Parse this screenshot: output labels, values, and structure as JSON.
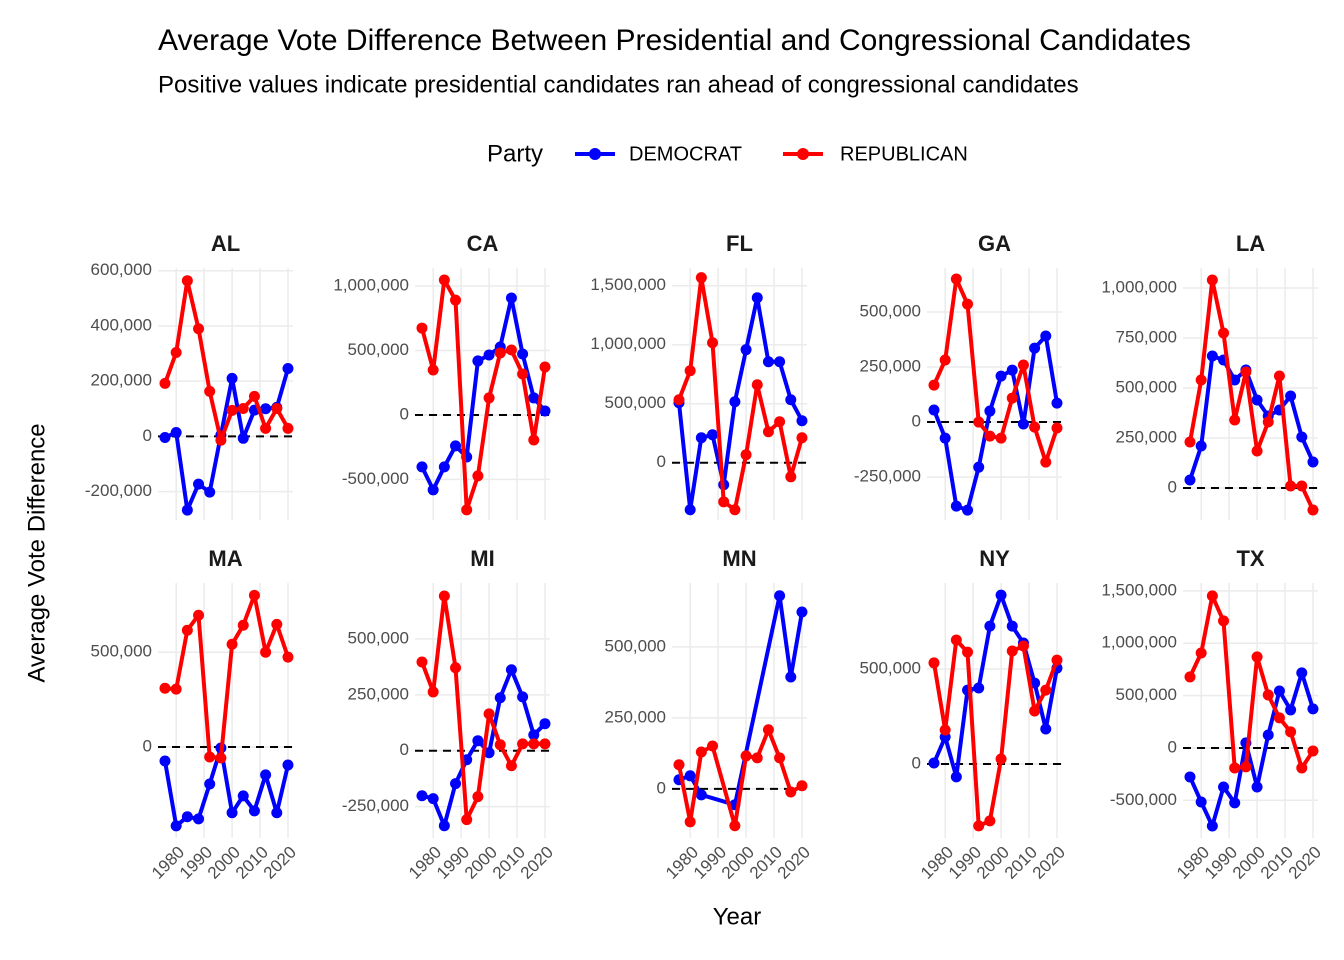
{
  "figure": {
    "title": "Average Vote Difference Between Presidential and Congressional Candidates",
    "subtitle": "Positive values indicate presidential candidates ran ahead of congressional candidates",
    "legend_title": "Party",
    "x_label": "Year",
    "y_label": "Average Vote Difference",
    "hline": 0
  },
  "chart_data": [
    {
      "type": "line",
      "title": "AL",
      "xlim": [
        1973.5,
        2021.8
      ],
      "xticks": [
        1980,
        1990,
        2000,
        2010,
        2020
      ],
      "ylim": [
        -303000,
        610000
      ],
      "yticks": [
        {
          "value": -200000,
          "label": "-200,000"
        },
        0,
        {
          "value": 200000,
          "label": "200,000"
        },
        {
          "value": 400000,
          "label": "400,000"
        },
        {
          "value": 600000,
          "label": "600,000"
        }
      ],
      "series": [
        {
          "name": "DEMOCRAT",
          "color": "#0000ff",
          "x": [
            1976,
            1980,
            1984,
            1988,
            1992,
            1996,
            2000,
            2004,
            2008,
            2012,
            2016,
            2020
          ],
          "values": [
            -4000,
            14000,
            -267000,
            -173000,
            -202000,
            5000,
            210000,
            -7000,
            95000,
            100000,
            105000,
            246000
          ]
        },
        {
          "name": "REPUBLICAN",
          "color": "#ff0000",
          "x": [
            1976,
            1980,
            1984,
            1988,
            1992,
            1996,
            2000,
            2004,
            2008,
            2012,
            2016,
            2020
          ],
          "values": [
            192000,
            304000,
            564000,
            390000,
            163000,
            -14000,
            94000,
            101000,
            145000,
            29000,
            101000,
            29000
          ]
        }
      ]
    },
    {
      "type": "line",
      "title": "CA",
      "xlim": [
        1973.5,
        2021.8
      ],
      "xticks": [
        1980,
        1990,
        2000,
        2010,
        2020
      ],
      "ylim": [
        -815000,
        1140000
      ],
      "yticks": [
        {
          "value": -500000,
          "label": "-500,000"
        },
        0,
        {
          "value": 500000,
          "label": "500,000"
        },
        {
          "value": 1000000,
          "label": "1,000,000"
        }
      ],
      "series": [
        {
          "name": "DEMOCRAT",
          "color": "#0000ff",
          "x": [
            1976,
            1980,
            1984,
            1988,
            1992,
            1996,
            2000,
            2004,
            2008,
            2012,
            2016,
            2020
          ],
          "values": [
            -403000,
            -581000,
            -403000,
            -240000,
            -326000,
            419000,
            465000,
            527000,
            907000,
            473000,
            132000,
            31000
          ]
        },
        {
          "name": "REPUBLICAN",
          "color": "#ff0000",
          "x": [
            1976,
            1980,
            1984,
            1988,
            1992,
            1996,
            2000,
            2004,
            2008,
            2012,
            2016,
            2020
          ],
          "values": [
            674000,
            349000,
            1047000,
            891000,
            -736000,
            -473000,
            132000,
            481000,
            504000,
            318000,
            -194000,
            372000
          ]
        }
      ]
    },
    {
      "type": "line",
      "title": "FL",
      "xlim": [
        1973.5,
        2021.8
      ],
      "xticks": [
        1980,
        1990,
        2000,
        2010,
        2020
      ],
      "ylim": [
        -485000,
        1650000
      ],
      "yticks": [
        0,
        {
          "value": 500000,
          "label": "500,000"
        },
        {
          "value": 1000000,
          "label": "1,000,000"
        },
        {
          "value": 1500000,
          "label": "1,500,000"
        }
      ],
      "series": [
        {
          "name": "DEMOCRAT",
          "color": "#0000ff",
          "x": [
            1976,
            1980,
            1984,
            1988,
            1992,
            1996,
            2000,
            2004,
            2008,
            2012,
            2016,
            2020
          ],
          "values": [
            508000,
            -398000,
            212000,
            237000,
            -186000,
            517000,
            958000,
            1398000,
            856000,
            856000,
            534000,
            356000
          ]
        },
        {
          "name": "REPUBLICAN",
          "color": "#ff0000",
          "x": [
            1976,
            1980,
            1984,
            1988,
            1992,
            1996,
            2000,
            2004,
            2008,
            2012,
            2016,
            2020
          ],
          "values": [
            534000,
            780000,
            1568000,
            1017000,
            -331000,
            -398000,
            68000,
            661000,
            263000,
            347000,
            -119000,
            212000
          ]
        }
      ]
    },
    {
      "type": "line",
      "title": "GA",
      "xlim": [
        1973.5,
        2021.8
      ],
      "xticks": [
        1980,
        1990,
        2000,
        2010,
        2020
      ],
      "ylim": [
        -445000,
        700000
      ],
      "yticks": [
        {
          "value": -250000,
          "label": "-250,000"
        },
        0,
        {
          "value": 250000,
          "label": "250,000"
        },
        {
          "value": 500000,
          "label": "500,000"
        }
      ],
      "series": [
        {
          "name": "DEMOCRAT",
          "color": "#0000ff",
          "x": [
            1976,
            1980,
            1984,
            1988,
            1992,
            1996,
            2000,
            2004,
            2008,
            2012,
            2016,
            2020
          ],
          "values": [
            55000,
            -73000,
            -382000,
            -400000,
            -205000,
            50000,
            209000,
            236000,
            -9000,
            336000,
            391000,
            86000
          ]
        },
        {
          "name": "REPUBLICAN",
          "color": "#ff0000",
          "x": [
            1976,
            1980,
            1984,
            1988,
            1992,
            1996,
            2000,
            2004,
            2008,
            2012,
            2016,
            2020
          ],
          "values": [
            168000,
            282000,
            650000,
            536000,
            0,
            -64000,
            -73000,
            109000,
            259000,
            -23000,
            -182000,
            -27000
          ]
        }
      ]
    },
    {
      "type": "line",
      "title": "LA",
      "xlim": [
        1973.5,
        2021.8
      ],
      "xticks": [
        1980,
        1990,
        2000,
        2010,
        2020
      ],
      "ylim": [
        -160000,
        1100000
      ],
      "yticks": [
        0,
        {
          "value": 250000,
          "label": "250,000"
        },
        {
          "value": 500000,
          "label": "500,000"
        },
        {
          "value": 750000,
          "label": "750,000"
        },
        {
          "value": 1000000,
          "label": "1,000,000"
        }
      ],
      "series": [
        {
          "name": "DEMOCRAT",
          "color": "#0000ff",
          "x": [
            1976,
            1980,
            1984,
            1988,
            1992,
            1996,
            2000,
            2004,
            2008,
            2012,
            2016,
            2020
          ],
          "values": [
            40000,
            210000,
            660000,
            640000,
            540000,
            590000,
            440000,
            360000,
            390000,
            460000,
            255000,
            130000
          ]
        },
        {
          "name": "REPUBLICAN",
          "color": "#ff0000",
          "x": [
            1976,
            1980,
            1984,
            1988,
            1992,
            1996,
            2000,
            2004,
            2008,
            2012,
            2016,
            2020
          ],
          "values": [
            230000,
            540000,
            1040000,
            775000,
            340000,
            580000,
            185000,
            330000,
            560000,
            10000,
            10000,
            -110000
          ]
        }
      ]
    },
    {
      "type": "line",
      "title": "MA",
      "xlim": [
        1973.5,
        2021.8
      ],
      "xticks": [
        1980,
        1990,
        2000,
        2010,
        2020
      ],
      "ylim": [
        -480000,
        865000
      ],
      "yticks": [
        0,
        {
          "value": 500000,
          "label": "500,000"
        }
      ],
      "series": [
        {
          "name": "DEMOCRAT",
          "color": "#0000ff",
          "x": [
            1976,
            1980,
            1984,
            1988,
            1992,
            1996,
            2000,
            2004,
            2008,
            2012,
            2016,
            2020
          ],
          "values": [
            -74000,
            -416000,
            -368000,
            -379000,
            -195000,
            -5000,
            -347000,
            -258000,
            -337000,
            -147000,
            -347000,
            -95000
          ]
        },
        {
          "name": "REPUBLICAN",
          "color": "#ff0000",
          "x": [
            1976,
            1980,
            1984,
            1988,
            1992,
            1996,
            2000,
            2004,
            2008,
            2012,
            2016,
            2020
          ],
          "values": [
            310000,
            305000,
            616000,
            695000,
            -53000,
            -58000,
            542000,
            642000,
            800000,
            500000,
            647000,
            474000
          ]
        }
      ]
    },
    {
      "type": "line",
      "title": "MI",
      "xlim": [
        1973.5,
        2021.8
      ],
      "xticks": [
        1980,
        1990,
        2000,
        2010,
        2020
      ],
      "ylim": [
        -390000,
        750000
      ],
      "yticks": [
        {
          "value": -250000,
          "label": "-250,000"
        },
        0,
        {
          "value": 250000,
          "label": "250,000"
        },
        {
          "value": 500000,
          "label": "500,000"
        }
      ],
      "series": [
        {
          "name": "DEMOCRAT",
          "color": "#0000ff",
          "x": [
            1976,
            1980,
            1984,
            1988,
            1992,
            1996,
            2000,
            2004,
            2008,
            2012,
            2016,
            2020
          ],
          "values": [
            -201000,
            -214000,
            -335000,
            -147000,
            -40000,
            45000,
            -9000,
            237000,
            362000,
            241000,
            71000,
            121000
          ]
        },
        {
          "name": "REPUBLICAN",
          "color": "#ff0000",
          "x": [
            1976,
            1980,
            1984,
            1988,
            1992,
            1996,
            2000,
            2004,
            2008,
            2012,
            2016,
            2020
          ],
          "values": [
            397000,
            263000,
            692000,
            371000,
            -308000,
            -205000,
            165000,
            27000,
            -67000,
            31000,
            31000,
            31000
          ]
        }
      ]
    },
    {
      "type": "line",
      "title": "MN",
      "xlim": [
        1973.5,
        2021.8
      ],
      "xticks": [
        1980,
        1990,
        2000,
        2010,
        2020
      ],
      "ylim": [
        -173000,
        725000
      ],
      "yticks": [
        0,
        {
          "value": 250000,
          "label": "250,000"
        },
        {
          "value": 500000,
          "label": "500,000"
        }
      ],
      "series": [
        {
          "name": "DEMOCRAT",
          "color": "#0000ff",
          "x": [
            1976,
            1980,
            1984,
            1996,
            2012,
            2016,
            2020
          ],
          "values": [
            32000,
            46000,
            -21000,
            -56000,
            680000,
            394000,
            623000
          ]
        },
        {
          "name": "REPUBLICAN",
          "color": "#ff0000",
          "x": [
            1976,
            1980,
            1984,
            1988,
            1996,
            2000,
            2004,
            2008,
            2012,
            2016,
            2020
          ],
          "values": [
            85000,
            -116000,
            130000,
            151000,
            -130000,
            116000,
            109000,
            208000,
            109000,
            -11000,
            11000
          ]
        }
      ]
    },
    {
      "type": "line",
      "title": "NY",
      "xlim": [
        1973.5,
        2021.8
      ],
      "xticks": [
        1980,
        1990,
        2000,
        2010,
        2020
      ],
      "ylim": [
        -390000,
        953000
      ],
      "yticks": [
        0,
        {
          "value": 500000,
          "label": "500,000"
        }
      ],
      "series": [
        {
          "name": "DEMOCRAT",
          "color": "#0000ff",
          "x": [
            1976,
            1980,
            1984,
            1988,
            1992,
            1996,
            2000,
            2004,
            2008,
            2012,
            2016,
            2020
          ],
          "values": [
            5000,
            142000,
            -68000,
            389000,
            400000,
            726000,
            889000,
            726000,
            637000,
            426000,
            184000,
            505000
          ]
        },
        {
          "name": "REPUBLICAN",
          "color": "#ff0000",
          "x": [
            1976,
            1980,
            1984,
            1988,
            1992,
            1996,
            2000,
            2004,
            2008,
            2012,
            2016,
            2020
          ],
          "values": [
            532000,
            179000,
            653000,
            589000,
            -326000,
            -300000,
            26000,
            595000,
            621000,
            279000,
            389000,
            547000
          ]
        }
      ]
    },
    {
      "type": "line",
      "title": "TX",
      "xlim": [
        1973.5,
        2021.8
      ],
      "xticks": [
        1980,
        1990,
        2000,
        2010,
        2020
      ],
      "ylim": [
        -860000,
        1575000
      ],
      "yticks": [
        {
          "value": -500000,
          "label": "-500,000"
        },
        0,
        {
          "value": 500000,
          "label": "500,000"
        },
        {
          "value": 1000000,
          "label": "1,000,000"
        },
        {
          "value": 1500000,
          "label": "1,500,000"
        }
      ],
      "series": [
        {
          "name": "DEMOCRAT",
          "color": "#0000ff",
          "x": [
            1976,
            1980,
            1984,
            1988,
            1992,
            1996,
            2000,
            2004,
            2008,
            2012,
            2016,
            2020
          ],
          "values": [
            -277000,
            -516000,
            -745000,
            -373000,
            -525000,
            48000,
            -373000,
            124000,
            544000,
            363000,
            717000,
            373000
          ]
        },
        {
          "name": "REPUBLICAN",
          "color": "#ff0000",
          "x": [
            1976,
            1980,
            1984,
            1988,
            1992,
            1996,
            2000,
            2004,
            2008,
            2012,
            2016,
            2020
          ],
          "values": [
            678000,
            907000,
            1452000,
            1213000,
            -191000,
            -181000,
            869000,
            506000,
            287000,
            153000,
            -191000,
            -29000
          ]
        }
      ]
    }
  ]
}
